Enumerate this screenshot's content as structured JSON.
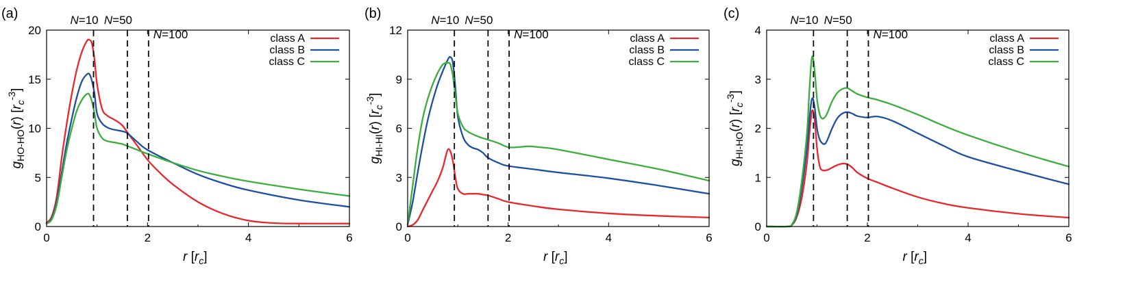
{
  "chart_data": [
    {
      "type": "line",
      "panel_label": "(a)",
      "xlabel": "r  [r_c]",
      "ylabel": "g_{HO-HO}(r)  [r_c^{-3}]",
      "xlim": [
        0,
        6
      ],
      "ylim": [
        0,
        20
      ],
      "xticks": [
        0,
        2,
        4,
        6
      ],
      "yticks": [
        0,
        5,
        10,
        15,
        20
      ],
      "legend_position": "top-right",
      "markers": [
        {
          "label": "N=10",
          "x": 0.93
        },
        {
          "label": "N=50",
          "x": 1.6
        },
        {
          "label": "N=100",
          "x": 2.02
        }
      ],
      "series": [
        {
          "name": "class A",
          "color": "#e8262b",
          "x": [
            0,
            0.1,
            0.2,
            0.3,
            0.4,
            0.5,
            0.6,
            0.7,
            0.8,
            0.85,
            0.9,
            0.95,
            1.0,
            1.1,
            1.2,
            1.3,
            1.4,
            1.5,
            1.6,
            1.7,
            1.8,
            2.0,
            2.2,
            2.5,
            3.0,
            3.5,
            4.0,
            4.5,
            5.0,
            6.0
          ],
          "y": [
            0.4,
            1.0,
            3.0,
            7.0,
            10.5,
            13.5,
            16.0,
            17.8,
            18.9,
            19.0,
            18.6,
            17.0,
            14.5,
            12.0,
            11.3,
            11.0,
            10.7,
            10.3,
            9.6,
            8.9,
            8.2,
            6.8,
            5.7,
            4.3,
            2.5,
            1.3,
            0.6,
            0.35,
            0.3,
            0.3
          ]
        },
        {
          "name": "class B",
          "color": "#1d4fa0",
          "x": [
            0,
            0.1,
            0.2,
            0.3,
            0.4,
            0.5,
            0.6,
            0.7,
            0.8,
            0.85,
            0.9,
            0.95,
            1.0,
            1.1,
            1.2,
            1.3,
            1.4,
            1.5,
            1.6,
            1.8,
            2.0,
            2.5,
            3.0,
            3.5,
            4.0,
            5.0,
            6.0
          ],
          "y": [
            0.3,
            0.8,
            2.5,
            5.5,
            8.5,
            11.0,
            13.2,
            14.8,
            15.5,
            15.5,
            14.8,
            13.5,
            11.5,
            10.5,
            10.1,
            9.9,
            9.8,
            9.7,
            9.5,
            8.6,
            7.8,
            6.5,
            5.3,
            4.4,
            3.7,
            2.7,
            2.0
          ]
        },
        {
          "name": "class C",
          "color": "#3aad3a",
          "x": [
            0,
            0.1,
            0.2,
            0.3,
            0.4,
            0.5,
            0.6,
            0.7,
            0.8,
            0.85,
            0.9,
            0.95,
            1.0,
            1.1,
            1.2,
            1.3,
            1.4,
            1.5,
            1.6,
            1.8,
            2.0,
            2.5,
            3.0,
            3.5,
            4.0,
            5.0,
            6.0
          ],
          "y": [
            0.3,
            0.7,
            2.2,
            5.0,
            7.8,
            10.0,
            11.8,
            12.9,
            13.5,
            13.4,
            12.7,
            11.5,
            10.0,
            9.0,
            8.7,
            8.6,
            8.5,
            8.4,
            8.2,
            7.8,
            7.4,
            6.5,
            5.7,
            5.1,
            4.6,
            3.8,
            3.1
          ]
        }
      ]
    },
    {
      "type": "line",
      "panel_label": "(b)",
      "xlabel": "r  [r_c]",
      "ylabel": "g_{HI-HI}(r)  [r_c^{-3}]",
      "xlim": [
        0,
        6
      ],
      "ylim": [
        0,
        12
      ],
      "xticks": [
        0,
        2,
        4,
        6
      ],
      "yticks": [
        0,
        3,
        6,
        9,
        12
      ],
      "legend_position": "top-right",
      "markers": [
        {
          "label": "N=10",
          "x": 0.93
        },
        {
          "label": "N=50",
          "x": 1.6
        },
        {
          "label": "N=100",
          "x": 2.02
        }
      ],
      "series": [
        {
          "name": "class A",
          "color": "#e8262b",
          "x": [
            0,
            0.1,
            0.2,
            0.3,
            0.4,
            0.5,
            0.6,
            0.7,
            0.75,
            0.8,
            0.85,
            0.9,
            0.95,
            1.0,
            1.1,
            1.2,
            1.3,
            1.4,
            1.5,
            1.6,
            1.8,
            2.0,
            2.5,
            3.0,
            4.0,
            5.0,
            6.0
          ],
          "y": [
            0,
            0.1,
            0.4,
            1.0,
            1.6,
            2.2,
            2.8,
            3.6,
            4.2,
            4.7,
            4.6,
            4.0,
            3.0,
            2.3,
            2.0,
            2.0,
            2.0,
            2.0,
            1.95,
            1.9,
            1.7,
            1.5,
            1.25,
            1.05,
            0.8,
            0.65,
            0.55
          ]
        },
        {
          "name": "class B",
          "color": "#1d4fa0",
          "x": [
            0,
            0.1,
            0.2,
            0.3,
            0.4,
            0.5,
            0.6,
            0.7,
            0.8,
            0.85,
            0.9,
            0.95,
            1.0,
            1.1,
            1.2,
            1.3,
            1.4,
            1.5,
            1.6,
            1.8,
            2.0,
            2.5,
            3.0,
            4.0,
            5.0,
            6.0
          ],
          "y": [
            0.1,
            1.5,
            3.3,
            5.0,
            6.5,
            7.7,
            8.7,
            9.5,
            10.2,
            10.35,
            10.0,
            8.5,
            6.7,
            5.5,
            5.0,
            4.8,
            4.7,
            4.5,
            4.2,
            3.9,
            3.7,
            3.5,
            3.3,
            2.95,
            2.5,
            2.0
          ]
        },
        {
          "name": "class C",
          "color": "#3aad3a",
          "x": [
            0,
            0.1,
            0.2,
            0.3,
            0.4,
            0.5,
            0.6,
            0.7,
            0.8,
            0.85,
            0.9,
            0.95,
            1.0,
            1.1,
            1.2,
            1.4,
            1.6,
            1.8,
            2.0,
            2.2,
            2.4,
            2.6,
            3.0,
            4.0,
            5.0,
            6.0
          ],
          "y": [
            0.1,
            2.5,
            4.8,
            6.6,
            7.8,
            8.7,
            9.4,
            9.9,
            10.0,
            9.9,
            9.2,
            8.0,
            6.9,
            6.1,
            5.8,
            5.5,
            5.3,
            5.1,
            4.85,
            4.85,
            4.9,
            4.85,
            4.7,
            4.1,
            3.5,
            2.8
          ]
        }
      ]
    },
    {
      "type": "line",
      "panel_label": "(c)",
      "xlabel": "r  [r_c]",
      "ylabel": "g_{HI-HO}(r)  [r_c^{-3}]",
      "xlim": [
        0,
        6
      ],
      "ylim": [
        0,
        4
      ],
      "xticks": [
        0,
        2,
        4,
        6
      ],
      "yticks": [
        0,
        1,
        2,
        3,
        4
      ],
      "legend_position": "top-right",
      "markers": [
        {
          "label": "N=10",
          "x": 0.93
        },
        {
          "label": "N=50",
          "x": 1.6
        },
        {
          "label": "N=100",
          "x": 2.02
        }
      ],
      "series": [
        {
          "name": "class A",
          "color": "#e8262b",
          "x": [
            0,
            0.4,
            0.5,
            0.6,
            0.7,
            0.8,
            0.85,
            0.9,
            0.95,
            1.0,
            1.05,
            1.1,
            1.2,
            1.3,
            1.4,
            1.5,
            1.6,
            1.7,
            1.8,
            2.0,
            2.2,
            2.5,
            3.0,
            3.5,
            4.0,
            5.0,
            6.0
          ],
          "y": [
            0,
            0,
            0.03,
            0.2,
            0.6,
            1.3,
            1.9,
            2.35,
            2.2,
            1.6,
            1.25,
            1.15,
            1.15,
            1.2,
            1.25,
            1.28,
            1.27,
            1.2,
            1.1,
            0.98,
            0.9,
            0.78,
            0.6,
            0.47,
            0.38,
            0.26,
            0.18
          ]
        },
        {
          "name": "class B",
          "color": "#1d4fa0",
          "x": [
            0,
            0.4,
            0.5,
            0.6,
            0.7,
            0.8,
            0.85,
            0.9,
            0.95,
            1.0,
            1.05,
            1.1,
            1.15,
            1.2,
            1.3,
            1.4,
            1.5,
            1.6,
            1.7,
            1.8,
            2.0,
            2.2,
            2.5,
            3.0,
            3.5,
            4.0,
            5.0,
            6.0
          ],
          "y": [
            0,
            0,
            0.03,
            0.25,
            0.8,
            1.6,
            2.2,
            2.6,
            2.45,
            2.0,
            1.78,
            1.7,
            1.68,
            1.75,
            2.0,
            2.2,
            2.3,
            2.33,
            2.3,
            2.25,
            2.22,
            2.24,
            2.15,
            1.9,
            1.65,
            1.42,
            1.13,
            0.86
          ]
        },
        {
          "name": "class C",
          "color": "#3aad3a",
          "x": [
            0,
            0.4,
            0.5,
            0.6,
            0.7,
            0.8,
            0.85,
            0.9,
            0.95,
            1.0,
            1.05,
            1.1,
            1.15,
            1.2,
            1.3,
            1.4,
            1.5,
            1.6,
            1.7,
            1.8,
            2.0,
            2.2,
            2.5,
            3.0,
            3.5,
            4.0,
            5.0,
            6.0
          ],
          "y": [
            0,
            0,
            0.04,
            0.3,
            0.95,
            1.9,
            2.8,
            3.45,
            3.2,
            2.6,
            2.3,
            2.2,
            2.22,
            2.3,
            2.55,
            2.72,
            2.8,
            2.82,
            2.76,
            2.7,
            2.63,
            2.58,
            2.48,
            2.28,
            2.06,
            1.86,
            1.52,
            1.22
          ]
        }
      ]
    }
  ]
}
